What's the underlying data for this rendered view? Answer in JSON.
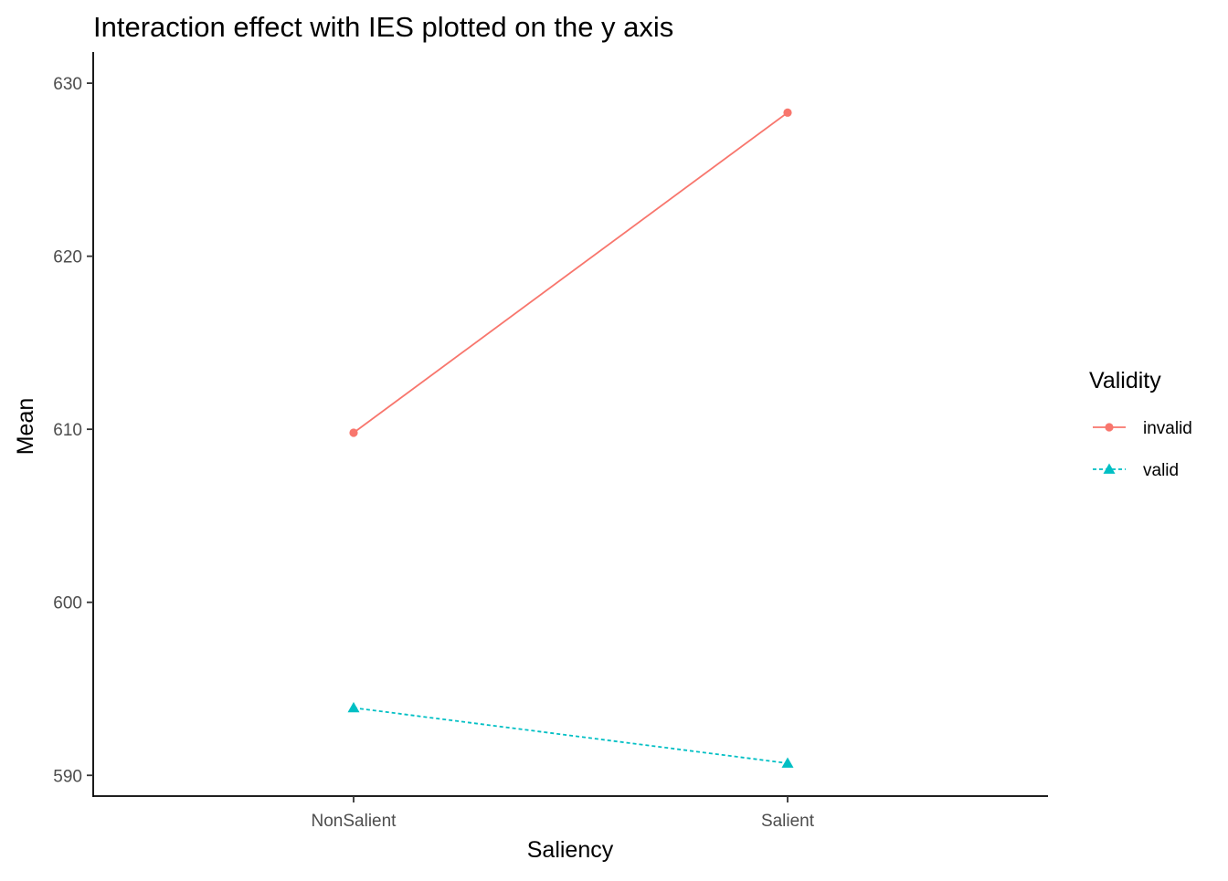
{
  "chart_data": {
    "type": "line",
    "title": "Interaction effect with IES plotted on the y axis",
    "xlabel": "Saliency",
    "ylabel": "Mean",
    "categories": [
      "NonSalient",
      "Salient"
    ],
    "ylim": [
      588.8,
      631.8
    ],
    "yticks": [
      590,
      600,
      610,
      620,
      630
    ],
    "legend": {
      "title": "Validity",
      "position": "right"
    },
    "series": [
      {
        "name": "invalid",
        "values": [
          609.8,
          628.3
        ],
        "color": "#F8766D",
        "line_style": "solid",
        "marker": "circle"
      },
      {
        "name": "valid",
        "values": [
          593.9,
          590.7
        ],
        "color": "#00BFC4",
        "line_style": "dashed",
        "marker": "triangle"
      }
    ],
    "grid": false
  }
}
